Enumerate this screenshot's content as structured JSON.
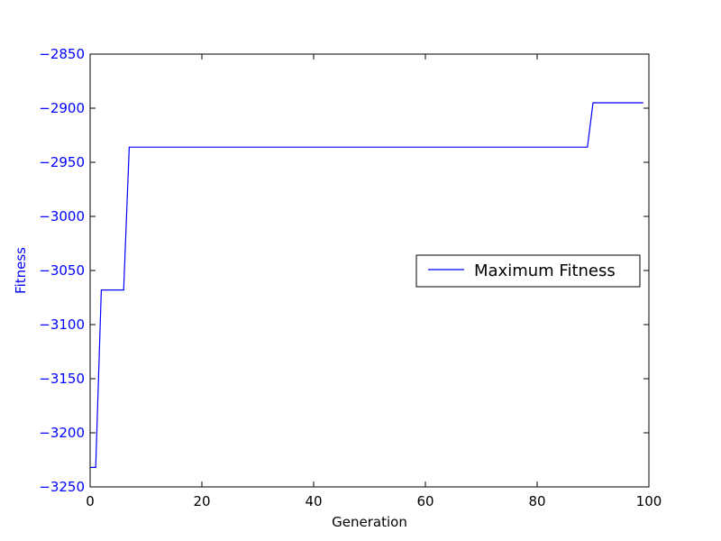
{
  "chart_data": {
    "type": "line",
    "xlabel": "Generation",
    "ylabel": "Fitness",
    "xlim": [
      0,
      100
    ],
    "ylim": [
      -3250,
      -2850
    ],
    "x_ticks": [
      0,
      20,
      40,
      60,
      80,
      100
    ],
    "y_ticks": [
      -3250,
      -3200,
      -3150,
      -3100,
      -3050,
      -3000,
      -2950,
      -2900,
      -2850
    ],
    "x_tick_labels": [
      "0",
      "20",
      "40",
      "60",
      "80",
      "100"
    ],
    "y_tick_labels": [
      "−3250",
      "−3200",
      "−3150",
      "−3100",
      "−3050",
      "−3000",
      "−2950",
      "−2900",
      "−2850"
    ],
    "grid": false,
    "legend_position": "center-right",
    "series": [
      {
        "name": "Maximum Fitness",
        "color": "#0000ff",
        "x": [
          0,
          1,
          2,
          3,
          4,
          5,
          6,
          7,
          8,
          89,
          90,
          99
        ],
        "y": [
          -3232,
          -3232,
          -3068,
          -3068,
          -3068,
          -3068,
          -3068,
          -2936,
          -2936,
          -2936,
          -2895,
          -2895
        ]
      }
    ]
  }
}
